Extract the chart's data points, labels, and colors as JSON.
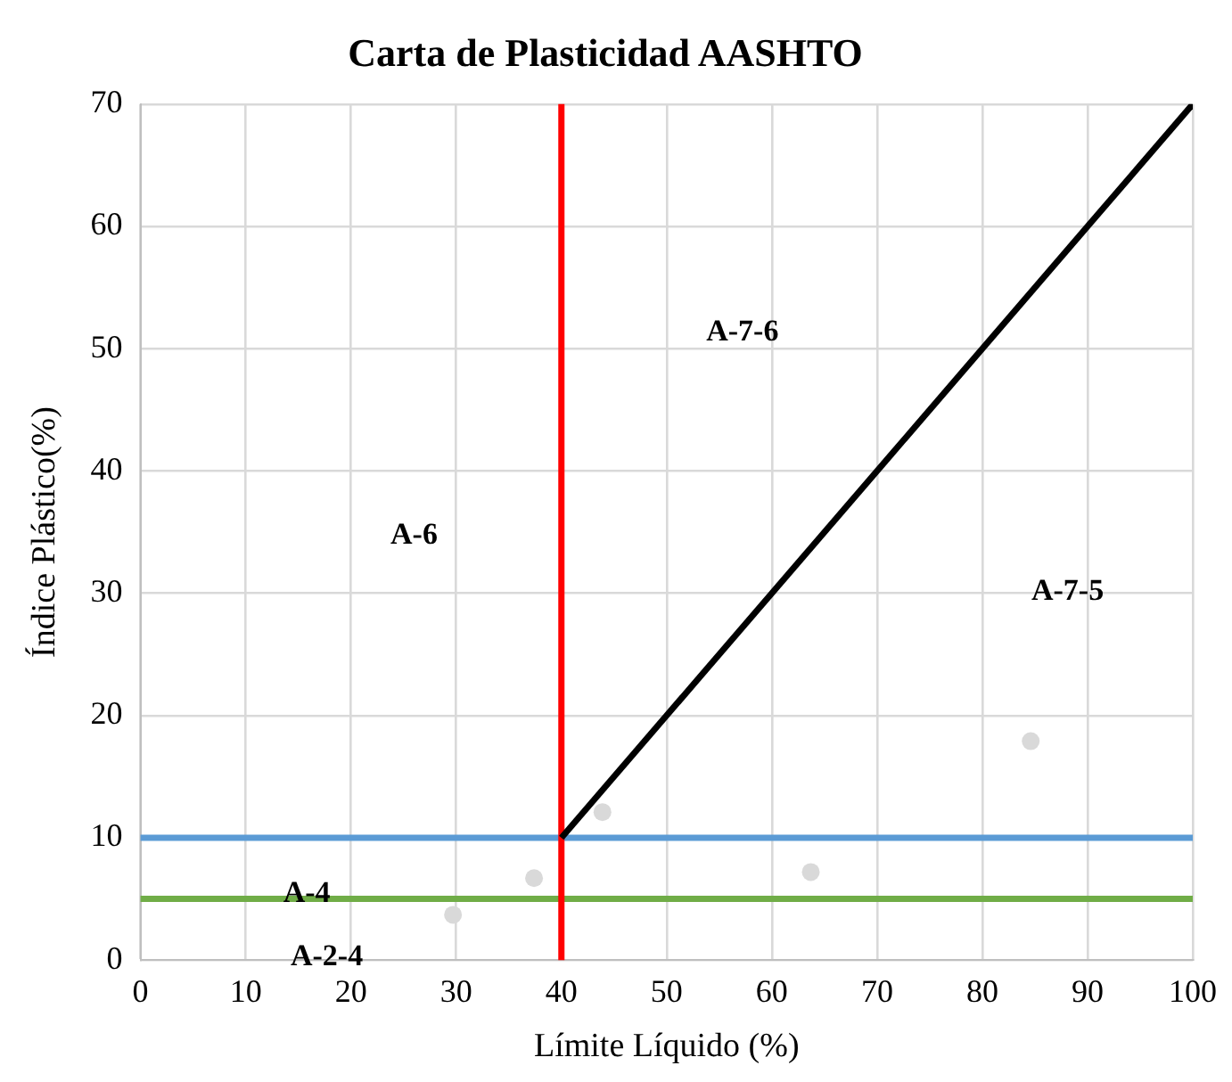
{
  "chart_data": {
    "type": "scatter",
    "title": "Carta de Plasticidad AASHTO",
    "xlabel": "Límite Líquido (%)",
    "ylabel": "Índice Plástico(%)",
    "xlim": [
      0,
      100
    ],
    "xticks": [
      0,
      10,
      20,
      30,
      40,
      50,
      60,
      70,
      80,
      90,
      100
    ],
    "ylim": [
      0,
      70
    ],
    "yticks": [
      0,
      10,
      20,
      30,
      40,
      50,
      60,
      70
    ],
    "grid": true,
    "legend": false,
    "marker": "circle",
    "series": [
      {
        "type": "line",
        "color": "#000000",
        "x": [
          40,
          100
        ],
        "values": [
          10,
          70
        ],
        "marker": "none"
      },
      {
        "color": "#d9d9d9",
        "x": [
          29.7,
          37.4,
          43.9,
          63.7,
          84.6
        ],
        "values": [
          3.7,
          6.7,
          12.1,
          7.2,
          17.9
        ]
      }
    ],
    "ref_lines": [
      {
        "axis": "y",
        "value": 10,
        "color": "#5b9bd5"
      },
      {
        "axis": "y",
        "value": 5,
        "color": "#70ad47"
      },
      {
        "axis": "x",
        "value": 40,
        "color": "#ff0000"
      }
    ],
    "annotations": [
      "A-7-6",
      "A-6",
      "A-7-5",
      {
        "text": "A-4",
        "x": 15.8,
        "y": 5.4
      },
      "A-2-4"
    ]
  }
}
